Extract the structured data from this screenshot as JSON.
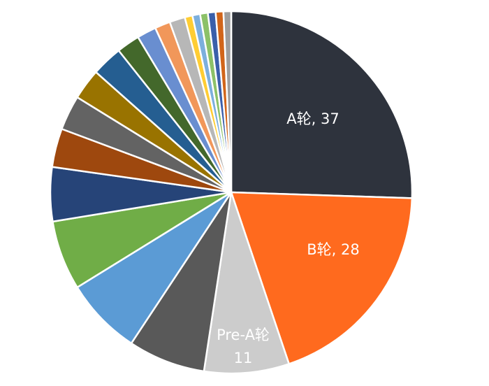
{
  "chart_data": {
    "type": "pie",
    "categories": [
      "A轮",
      "B轮",
      "Pre-A轮",
      "",
      "",
      "",
      "",
      "",
      "",
      "",
      "",
      "",
      "",
      "",
      "",
      "",
      "",
      "",
      "",
      "",
      ""
    ],
    "values": [
      37,
      28,
      11,
      10,
      10,
      9,
      7,
      5,
      4.5,
      4,
      4,
      3,
      2.5,
      2,
      2,
      1,
      1,
      1,
      1,
      1,
      1
    ],
    "colors": [
      "#2E333D",
      "#FF6A1E",
      "#CCCCCC",
      "#595959",
      "#5B9BD5",
      "#70AD47",
      "#264478",
      "#9E480E",
      "#636363",
      "#997300",
      "#255E91",
      "#43682B",
      "#698ED0",
      "#F1975A",
      "#B7B7B7",
      "#FFCD33",
      "#7CAFDD",
      "#8CC168",
      "#3A5FAA",
      "#D1651A",
      "#9E9E9E"
    ],
    "data_labels": [
      {
        "line1": "A轮, 37",
        "line2": ""
      },
      {
        "line1": "B轮, 28",
        "line2": ""
      },
      {
        "line1": "Pre-A轮",
        "line2": "11"
      }
    ],
    "start_angle_deg": 0,
    "direction": "clockwise",
    "title": "",
    "legend": "none"
  }
}
